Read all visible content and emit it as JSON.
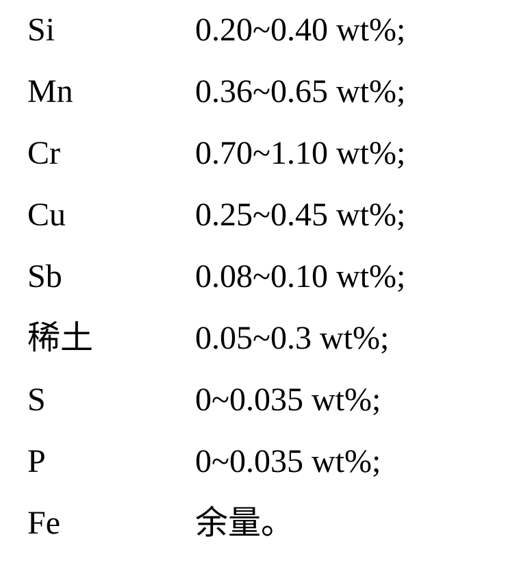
{
  "composition": {
    "font_family": "Times New Roman, SimSun, serif",
    "font_size_pt": 36,
    "text_color": "#000000",
    "background_color": "#ffffff",
    "rows": [
      {
        "element": "Si",
        "value": "0.20~0.40 wt%;"
      },
      {
        "element": "Mn",
        "value": "0.36~0.65 wt%;"
      },
      {
        "element": "Cr",
        "value": "0.70~1.10 wt%;"
      },
      {
        "element": "Cu",
        "value": "0.25~0.45 wt%;"
      },
      {
        "element": "Sb",
        "value": "0.08~0.10 wt%;"
      },
      {
        "element": "稀土",
        "value": "0.05~0.3 wt%;"
      },
      {
        "element": "S",
        "value": "0~0.035 wt%;"
      },
      {
        "element": "P",
        "value": "0~0.035 wt%;"
      },
      {
        "element": "Fe",
        "value": "余量。"
      }
    ]
  }
}
